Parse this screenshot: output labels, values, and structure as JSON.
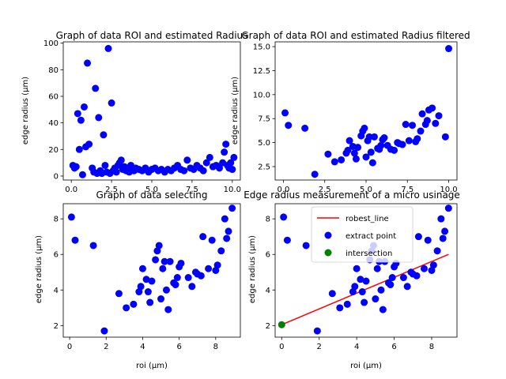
{
  "chart_data": [
    {
      "type": "scatter",
      "title": "Graph of data ROI and estimated Radius",
      "xlabel": "",
      "ylabel": "edge radius (µm)",
      "xlim": [
        -0.5,
        10.5
      ],
      "ylim": [
        -3,
        101
      ],
      "xticks": [
        0.0,
        2.5,
        5.0,
        7.5,
        10.0
      ],
      "xtick_labels": [
        "0.0",
        "2.5",
        "5.0",
        "7.5",
        "10.0"
      ],
      "yticks": [
        0,
        20,
        40,
        60,
        80,
        100
      ],
      "ytick_labels": [
        "0",
        "20",
        "40",
        "60",
        "80",
        "100"
      ],
      "series": [
        {
          "color": "#0000ff",
          "marker": "circle",
          "points": [
            [
              0.1,
              8
            ],
            [
              0.2,
              6
            ],
            [
              0.3,
              7
            ],
            [
              0.4,
              47
            ],
            [
              0.5,
              20
            ],
            [
              0.6,
              42
            ],
            [
              0.7,
              1
            ],
            [
              0.8,
              52
            ],
            [
              0.9,
              22
            ],
            [
              1.0,
              85
            ],
            [
              1.1,
              24
            ],
            [
              1.3,
              6
            ],
            [
              1.4,
              3
            ],
            [
              1.5,
              66
            ],
            [
              1.6,
              2
            ],
            [
              1.7,
              44
            ],
            [
              1.8,
              4
            ],
            [
              1.9,
              2
            ],
            [
              2.0,
              31
            ],
            [
              2.1,
              8
            ],
            [
              2.2,
              3
            ],
            [
              2.3,
              96
            ],
            [
              2.4,
              2
            ],
            [
              2.5,
              55
            ],
            [
              2.6,
              4
            ],
            [
              2.7,
              6
            ],
            [
              2.8,
              3
            ],
            [
              2.9,
              8
            ],
            [
              3.0,
              10
            ],
            [
              3.1,
              12
            ],
            [
              3.2,
              5
            ],
            [
              3.3,
              7
            ],
            [
              3.4,
              4
            ],
            [
              3.5,
              6
            ],
            [
              3.6,
              3
            ],
            [
              3.7,
              8
            ],
            [
              3.8,
              5
            ],
            [
              3.9,
              4
            ],
            [
              4.0,
              6
            ],
            [
              4.2,
              5
            ],
            [
              4.4,
              4
            ],
            [
              4.6,
              6
            ],
            [
              4.8,
              3
            ],
            [
              5.0,
              5
            ],
            [
              5.2,
              6
            ],
            [
              5.4,
              4
            ],
            [
              5.6,
              5
            ],
            [
              5.8,
              3
            ],
            [
              6.0,
              5
            ],
            [
              6.2,
              4
            ],
            [
              6.4,
              6
            ],
            [
              6.6,
              8
            ],
            [
              6.8,
              5
            ],
            [
              7.0,
              4
            ],
            [
              7.2,
              12
            ],
            [
              7.4,
              6
            ],
            [
              7.6,
              5
            ],
            [
              7.8,
              8
            ],
            [
              8.0,
              6
            ],
            [
              8.2,
              4
            ],
            [
              8.4,
              10
            ],
            [
              8.6,
              14
            ],
            [
              8.8,
              7
            ],
            [
              9.0,
              8
            ],
            [
              9.2,
              6
            ],
            [
              9.4,
              10
            ],
            [
              9.5,
              18
            ],
            [
              9.6,
              24
            ],
            [
              9.7,
              8
            ],
            [
              9.8,
              6
            ],
            [
              9.9,
              10
            ],
            [
              10.0,
              5
            ],
            [
              10.1,
              14
            ]
          ]
        }
      ]
    },
    {
      "type": "scatter",
      "title": "Graph of data ROI and estimated Radius filtered",
      "xlabel": "",
      "ylabel": "edge radius (µm)",
      "xlim": [
        -0.5,
        10.5
      ],
      "ylim": [
        1.1,
        15.5
      ],
      "xticks": [
        0.0,
        2.5,
        5.0,
        7.5,
        10.0
      ],
      "xtick_labels": [
        "0.0",
        "2.5",
        "5.0",
        "7.5",
        "10.0"
      ],
      "yticks": [
        2.5,
        5.0,
        7.5,
        10.0,
        12.5,
        15.0
      ],
      "ytick_labels": [
        "2.5",
        "5.0",
        "7.5",
        "10.0",
        "12.5",
        "15.0"
      ],
      "series": [
        {
          "color": "#0000ff",
          "marker": "circle",
          "points": [
            [
              0.1,
              8.1
            ],
            [
              0.3,
              6.8
            ],
            [
              1.3,
              6.5
            ],
            [
              1.9,
              1.7
            ],
            [
              2.7,
              3.8
            ],
            [
              3.1,
              3.0
            ],
            [
              3.5,
              3.2
            ],
            [
              3.8,
              3.9
            ],
            [
              3.9,
              4.2
            ],
            [
              4.0,
              5.2
            ],
            [
              4.2,
              4.6
            ],
            [
              4.3,
              3.9
            ],
            [
              4.4,
              3.3
            ],
            [
              4.5,
              4.5
            ],
            [
              4.7,
              5.7
            ],
            [
              4.8,
              6.2
            ],
            [
              4.9,
              6.5
            ],
            [
              5.0,
              3.5
            ],
            [
              5.1,
              5.2
            ],
            [
              5.2,
              5.6
            ],
            [
              5.3,
              4.0
            ],
            [
              5.4,
              2.9
            ],
            [
              5.5,
              5.6
            ],
            [
              5.7,
              4.4
            ],
            [
              5.8,
              4.3
            ],
            [
              5.9,
              4.7
            ],
            [
              6.0,
              5.3
            ],
            [
              6.1,
              5.5
            ],
            [
              6.3,
              4.7
            ],
            [
              6.5,
              4.3
            ],
            [
              6.7,
              4.2
            ],
            [
              6.9,
              5.0
            ],
            [
              7.0,
              4.9
            ],
            [
              7.2,
              4.8
            ],
            [
              7.4,
              6.9
            ],
            [
              7.6,
              5.2
            ],
            [
              7.8,
              6.8
            ],
            [
              8.0,
              5.1
            ],
            [
              8.1,
              5.4
            ],
            [
              8.3,
              6.2
            ],
            [
              8.4,
              8.0
            ],
            [
              8.6,
              6.9
            ],
            [
              8.7,
              7.3
            ],
            [
              8.8,
              8.4
            ],
            [
              9.0,
              8.6
            ],
            [
              9.2,
              7.0
            ],
            [
              9.4,
              7.8
            ],
            [
              9.8,
              5.6
            ],
            [
              10.0,
              14.8
            ]
          ]
        }
      ]
    },
    {
      "type": "scatter",
      "title": "Graph of data selecting",
      "xlabel": "roi (µm)",
      "ylabel": "edge radius (µm)",
      "xlim": [
        -0.35,
        9.35
      ],
      "ylim": [
        1.35,
        8.85
      ],
      "xticks": [
        0,
        2,
        4,
        6,
        8
      ],
      "xtick_labels": [
        "0",
        "2",
        "4",
        "6",
        "8"
      ],
      "yticks": [
        2,
        4,
        6,
        8
      ],
      "ytick_labels": [
        "2",
        "4",
        "6",
        "8"
      ],
      "series": [
        {
          "color": "#0000ff",
          "marker": "circle",
          "points": [
            [
              0.1,
              8.1
            ],
            [
              0.3,
              6.8
            ],
            [
              1.3,
              6.5
            ],
            [
              1.9,
              1.7
            ],
            [
              2.7,
              3.8
            ],
            [
              3.1,
              3.0
            ],
            [
              3.5,
              3.2
            ],
            [
              3.8,
              3.9
            ],
            [
              3.9,
              4.2
            ],
            [
              4.0,
              5.2
            ],
            [
              4.2,
              4.6
            ],
            [
              4.3,
              3.9
            ],
            [
              4.4,
              3.3
            ],
            [
              4.5,
              4.5
            ],
            [
              4.7,
              5.7
            ],
            [
              4.8,
              6.2
            ],
            [
              4.9,
              6.5
            ],
            [
              5.0,
              3.5
            ],
            [
              5.1,
              5.2
            ],
            [
              5.2,
              5.6
            ],
            [
              5.3,
              4.0
            ],
            [
              5.4,
              2.9
            ],
            [
              5.5,
              5.6
            ],
            [
              5.7,
              4.4
            ],
            [
              5.8,
              4.3
            ],
            [
              5.9,
              4.7
            ],
            [
              6.0,
              5.3
            ],
            [
              6.1,
              5.5
            ],
            [
              6.5,
              4.7
            ],
            [
              6.7,
              4.2
            ],
            [
              6.9,
              5.0
            ],
            [
              7.0,
              4.9
            ],
            [
              7.2,
              4.8
            ],
            [
              7.3,
              7.0
            ],
            [
              7.6,
              5.2
            ],
            [
              7.8,
              6.8
            ],
            [
              8.0,
              5.1
            ],
            [
              8.1,
              5.4
            ],
            [
              8.3,
              6.2
            ],
            [
              8.5,
              8.0
            ],
            [
              8.6,
              6.9
            ],
            [
              8.7,
              7.3
            ],
            [
              8.9,
              8.6
            ]
          ]
        }
      ]
    },
    {
      "type": "scatter",
      "title": "Edge radius measurement of a micro usinage",
      "xlabel": "roi (µm)",
      "ylabel": "edge radius (µm)",
      "xlim": [
        -0.35,
        9.35
      ],
      "ylim": [
        1.35,
        8.85
      ],
      "xticks": [
        0,
        2,
        4,
        6,
        8
      ],
      "xtick_labels": [
        "0",
        "2",
        "4",
        "6",
        "8"
      ],
      "yticks": [
        2,
        4,
        6,
        8
      ],
      "ytick_labels": [
        "2",
        "4",
        "6",
        "8"
      ],
      "legend": {
        "placement": "top-center",
        "entries": [
          {
            "label": "robest_line",
            "kind": "line",
            "color": "#ff0000"
          },
          {
            "label": "extract point",
            "kind": "marker",
            "color": "#0000ff"
          },
          {
            "label": "intersection",
            "kind": "marker",
            "color": "#008000"
          }
        ]
      },
      "line": {
        "name": "robest_line",
        "color": "#ff0000",
        "x": [
          0,
          8.9
        ],
        "y": [
          2.05,
          6.0
        ]
      },
      "intersection": {
        "name": "intersection",
        "color": "#008000",
        "x": 0,
        "y": 2.05
      },
      "series": [
        {
          "name": "extract point",
          "color": "#0000ff",
          "marker": "circle",
          "points": [
            [
              0.1,
              8.1
            ],
            [
              0.3,
              6.8
            ],
            [
              1.3,
              6.5
            ],
            [
              1.9,
              1.7
            ],
            [
              2.7,
              3.8
            ],
            [
              3.1,
              3.0
            ],
            [
              3.5,
              3.2
            ],
            [
              3.8,
              3.9
            ],
            [
              3.9,
              4.2
            ],
            [
              4.0,
              5.2
            ],
            [
              4.2,
              4.6
            ],
            [
              4.3,
              3.9
            ],
            [
              4.4,
              3.3
            ],
            [
              4.5,
              4.5
            ],
            [
              4.7,
              5.7
            ],
            [
              4.8,
              6.2
            ],
            [
              4.9,
              6.5
            ],
            [
              5.0,
              3.5
            ],
            [
              5.1,
              5.2
            ],
            [
              5.2,
              5.6
            ],
            [
              5.3,
              4.0
            ],
            [
              5.4,
              2.9
            ],
            [
              5.5,
              5.6
            ],
            [
              5.7,
              4.4
            ],
            [
              5.8,
              4.3
            ],
            [
              5.9,
              4.7
            ],
            [
              6.0,
              5.3
            ],
            [
              6.1,
              5.5
            ],
            [
              6.5,
              4.7
            ],
            [
              6.7,
              4.2
            ],
            [
              6.9,
              5.0
            ],
            [
              7.0,
              4.9
            ],
            [
              7.2,
              4.8
            ],
            [
              7.3,
              7.0
            ],
            [
              7.6,
              5.2
            ],
            [
              7.8,
              6.8
            ],
            [
              8.0,
              5.1
            ],
            [
              8.1,
              5.4
            ],
            [
              8.3,
              6.2
            ],
            [
              8.5,
              8.0
            ],
            [
              8.6,
              6.9
            ],
            [
              8.7,
              7.3
            ],
            [
              8.9,
              8.6
            ]
          ]
        }
      ]
    }
  ]
}
